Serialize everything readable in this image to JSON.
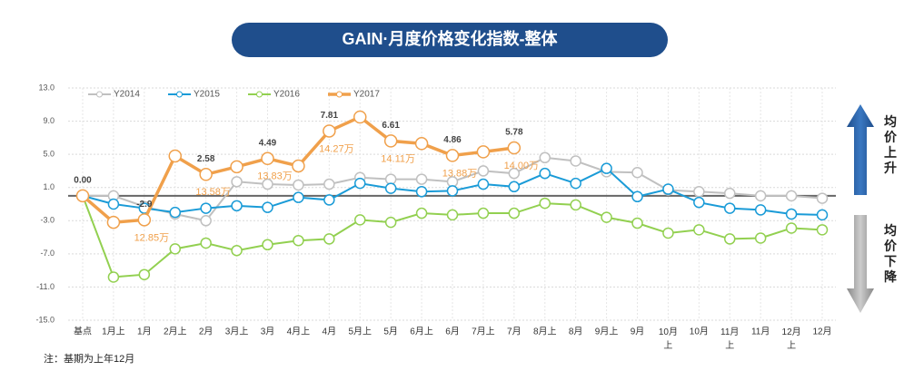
{
  "chart_data": {
    "type": "line",
    "title": "GAIN·月度价格变化指数-整体",
    "categories": [
      "基点",
      "1月上",
      "1月",
      "2月上",
      "2月",
      "3月上",
      "3月",
      "4月上",
      "4月",
      "5月上",
      "5月",
      "6月上",
      "6月",
      "7月上",
      "7月",
      "8月上",
      "8月",
      "9月上",
      "9月",
      "10月上",
      "10月",
      "11月上",
      "11月",
      "12月上",
      "12月"
    ],
    "series": [
      {
        "name": "Y2014",
        "color": "#c0c0c0",
        "values": [
          0,
          0,
          -1.3,
          -2.2,
          -3.0,
          1.7,
          1.4,
          1.3,
          1.4,
          2.2,
          2.0,
          2.0,
          1.7,
          3.0,
          2.7,
          4.6,
          4.2,
          2.9,
          2.8,
          0.7,
          0.5,
          0.3,
          0,
          0,
          -0.3
        ]
      },
      {
        "name": "Y2015",
        "color": "#1a9bd7",
        "values": [
          0,
          -1.0,
          -1.5,
          -2.0,
          -1.5,
          -1.2,
          -1.4,
          -0.2,
          -0.5,
          1.5,
          0.9,
          0.5,
          0.6,
          1.4,
          1.1,
          2.7,
          1.5,
          3.3,
          -0.1,
          0.8,
          -0.8,
          -1.5,
          -1.7,
          -2.2,
          -2.3
        ]
      },
      {
        "name": "Y2016",
        "color": "#92d050",
        "values": [
          0,
          -9.8,
          -9.5,
          -6.4,
          -5.7,
          -6.6,
          -5.9,
          -5.4,
          -5.2,
          -2.9,
          -3.2,
          -2.1,
          -2.3,
          -2.1,
          -2.1,
          -0.9,
          -1.1,
          -2.6,
          -3.3,
          -4.5,
          -4.1,
          -5.2,
          -5.1,
          -3.9,
          -4.1
        ]
      },
      {
        "name": "Y2017",
        "color": "#f0a04b",
        "values": [
          0,
          -3.2,
          -2.9,
          4.8,
          2.58,
          3.5,
          4.49,
          3.6,
          7.81,
          9.5,
          6.61,
          6.3,
          4.86,
          5.3,
          5.78,
          null,
          null,
          null,
          null,
          null,
          null,
          null,
          null,
          null,
          null
        ],
        "value_labels": [
          "0.00",
          null,
          "-2.9",
          null,
          "2.58",
          null,
          "4.49",
          null,
          "7.81",
          null,
          "6.61",
          null,
          "4.86",
          null,
          "5.78",
          null,
          null,
          null,
          null,
          null,
          null,
          null,
          null,
          null,
          null
        ],
        "price_labels": [
          null,
          null,
          "12.85万",
          null,
          "13.58万",
          null,
          "13.83万",
          null,
          "14.27万",
          null,
          "14.11万",
          null,
          "13.88万",
          null,
          "14.00万",
          null,
          null,
          null,
          null,
          null,
          null,
          null,
          null,
          null,
          null
        ]
      }
    ],
    "ylim": [
      -15,
      13
    ],
    "yticks": [
      {
        "value": 13,
        "label": "13.0"
      },
      {
        "value": 9,
        "label": "9.0"
      },
      {
        "value": 5,
        "label": "5.0"
      },
      {
        "value": 1,
        "label": "1.0"
      },
      {
        "value": -3,
        "label": "-3.0"
      },
      {
        "value": -7,
        "label": "-7.0"
      },
      {
        "value": -11,
        "label": "-11.0"
      },
      {
        "value": -15,
        "label": "-15.0"
      }
    ],
    "grid": true,
    "up_label": "均价上升",
    "down_label": "均价下降",
    "note": "注：基期为上年12月"
  }
}
